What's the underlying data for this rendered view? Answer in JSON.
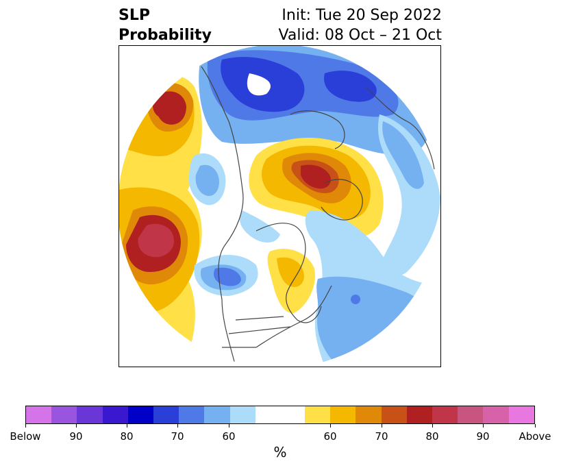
{
  "title": {
    "left": "SLP\nProbability",
    "left_line1": "SLP",
    "left_line2": "Probability",
    "right_line1": "Init: Tue 20 Sep 2022",
    "right_line2": "Valid: 08 Oct – 21 Oct"
  },
  "colorbar": {
    "colors": [
      "#d474e8",
      "#9a55e0",
      "#6a36d8",
      "#3a18d0",
      "#0000c8",
      "#2a3ed8",
      "#4f79e6",
      "#75b0f0",
      "#acdcfa",
      "#ffffff",
      "#ffe047",
      "#f4b800",
      "#e08808",
      "#c85118",
      "#b02020",
      "#c03548",
      "#c85480",
      "#d862aa",
      "#e878e0"
    ],
    "tick_labels": [
      "Below",
      "90",
      "80",
      "70",
      "60",
      "60",
      "70",
      "80",
      "90",
      "Above"
    ],
    "unit": "%"
  },
  "map": {
    "projection": "north polar stereographic",
    "variable": "Sea level pressure tercile probability"
  }
}
